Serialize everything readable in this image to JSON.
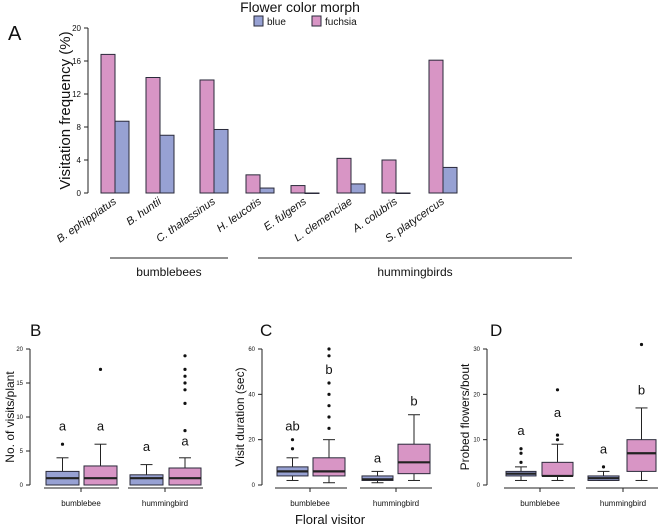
{
  "colors": {
    "blue": "#97a1d3",
    "fuchsia": "#d895c5",
    "stroke": "#2a2a3a"
  },
  "chart_data": [
    {
      "panel": "A",
      "type": "bar",
      "title": "",
      "ylabel": "Visitation frequency (%)",
      "xlabel": "",
      "ylim": [
        0,
        20
      ],
      "yticks": [
        0,
        4,
        8,
        12,
        16,
        20
      ],
      "legend": {
        "title": "Flower color morph",
        "placement": "top-center",
        "entries": [
          "blue",
          "fuchsia"
        ]
      },
      "categories": [
        "B. ephippiatus",
        "B. huntii",
        "C. thalassinus",
        "H. leucotis",
        "E. fulgens",
        "L. clemenciae",
        "A. colubris",
        "S. platycercus"
      ],
      "series": [
        {
          "name": "fuchsia",
          "values": [
            16.8,
            14.0,
            13.7,
            2.2,
            0.9,
            4.2,
            4.0,
            16.1
          ]
        },
        {
          "name": "blue",
          "values": [
            8.7,
            7.0,
            7.7,
            0.6,
            0.0,
            1.1,
            0.0,
            3.1
          ]
        }
      ],
      "groups": [
        {
          "label": "bumblebees",
          "categories": [
            "B. ephippiatus",
            "B. huntii"
          ]
        },
        {
          "label": "hummingbirds",
          "categories": [
            "C. thalassinus",
            "H. leucotis",
            "E. fulgens",
            "L. clemenciae",
            "A. colubris",
            "S. platycercus"
          ]
        }
      ]
    },
    {
      "panel": "B",
      "type": "box",
      "ylabel": "No. of visits/plant",
      "ylim": [
        0,
        20
      ],
      "yticks": [
        0,
        5,
        10,
        15,
        20
      ],
      "categories": [
        "bumblebee",
        "hummingbird"
      ],
      "boxes": [
        {
          "category": "bumblebee",
          "morph": "blue",
          "min": 0,
          "q1": 0,
          "median": 1,
          "q3": 2,
          "max": 4,
          "outliers": [
            6
          ],
          "letter": "a",
          "letter_y": 8
        },
        {
          "category": "bumblebee",
          "morph": "fuchsia",
          "min": 0,
          "q1": 0,
          "median": 1,
          "q3": 2.8,
          "max": 6,
          "outliers": [
            17
          ],
          "letter": "a",
          "letter_y": 8
        },
        {
          "category": "hummingbird",
          "morph": "blue",
          "min": 0,
          "q1": 0,
          "median": 1,
          "q3": 1.5,
          "max": 3,
          "outliers": [],
          "letter": "a",
          "letter_y": 5
        },
        {
          "category": "hummingbird",
          "morph": "fuchsia",
          "min": 0,
          "q1": 0,
          "median": 1,
          "q3": 2.5,
          "max": 4,
          "outliers": [
            8,
            12,
            14,
            15,
            16,
            17,
            19
          ],
          "letter": "a",
          "letter_y": 5.8
        }
      ]
    },
    {
      "panel": "C",
      "type": "box",
      "ylabel": "Visit duration (sec)",
      "ylim": [
        0,
        60
      ],
      "yticks": [
        0,
        20,
        40,
        60
      ],
      "categories": [
        "bumblebee",
        "hummingbird"
      ],
      "boxes": [
        {
          "category": "bumblebee",
          "morph": "blue",
          "min": 2,
          "q1": 4,
          "median": 6,
          "q3": 8,
          "max": 12,
          "outliers": [
            16,
            20
          ],
          "letter": "ab",
          "letter_y": 24
        },
        {
          "category": "bumblebee",
          "morph": "fuchsia",
          "min": 1,
          "q1": 4,
          "median": 6,
          "q3": 12,
          "max": 20,
          "outliers": [
            25,
            30,
            35,
            40,
            45,
            57,
            60
          ],
          "letter": "b",
          "letter_y": 49
        },
        {
          "category": "hummingbird",
          "morph": "blue",
          "min": 1,
          "q1": 2,
          "median": 2.5,
          "q3": 4,
          "max": 6,
          "outliers": [],
          "letter": "a",
          "letter_y": 10
        },
        {
          "category": "hummingbird",
          "morph": "fuchsia",
          "min": 2,
          "q1": 5,
          "median": 10,
          "q3": 18,
          "max": 31,
          "outliers": [],
          "letter": "b",
          "letter_y": 35
        }
      ]
    },
    {
      "panel": "D",
      "type": "box",
      "ylabel": "Probed flowers/bout",
      "ylim": [
        0,
        30
      ],
      "yticks": [
        0,
        10,
        20,
        30
      ],
      "categories": [
        "bumblebee",
        "hummingbird"
      ],
      "boxes": [
        {
          "category": "bumblebee",
          "morph": "blue",
          "min": 1,
          "q1": 2,
          "median": 2.5,
          "q3": 3,
          "max": 4,
          "outliers": [
            5,
            7,
            8
          ],
          "letter": "a",
          "letter_y": 11
        },
        {
          "category": "bumblebee",
          "morph": "fuchsia",
          "min": 1,
          "q1": 2,
          "median": 2,
          "q3": 5,
          "max": 9,
          "outliers": [
            10,
            11,
            21
          ],
          "letter": "a",
          "letter_y": 15
        },
        {
          "category": "hummingbird",
          "morph": "blue",
          "min": 1,
          "q1": 1,
          "median": 1.5,
          "q3": 2,
          "max": 3,
          "outliers": [
            4
          ],
          "letter": "a",
          "letter_y": 7
        },
        {
          "category": "hummingbird",
          "morph": "fuchsia",
          "min": 1,
          "q1": 3,
          "median": 7,
          "q3": 10,
          "max": 17,
          "outliers": [
            31
          ],
          "letter": "b",
          "letter_y": 20
        }
      ]
    }
  ],
  "shared_xlabel": "Floral visitor"
}
